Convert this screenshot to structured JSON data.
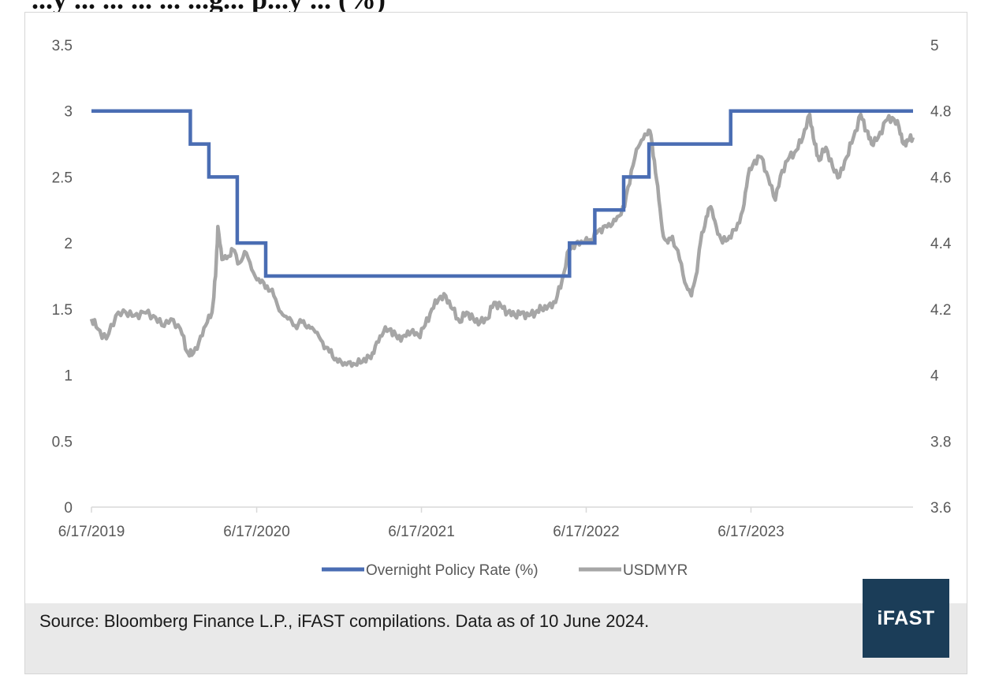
{
  "header": {
    "title_fragment": "...y ... ... ... ... ...g... p...y ... (%)"
  },
  "source_note": "Source: Bloomberg Finance L.P., iFAST compilations. Data as of 10 June 2024.",
  "logo_text": "iFAST",
  "colors": {
    "policy_rate": "#4a6db3",
    "usdmyr": "#a6a6a6",
    "logo_bg": "#1b3d58",
    "source_bg": "#e9e9e9"
  },
  "chart_data": {
    "type": "line",
    "x_axis": {
      "type": "date",
      "range": [
        "2019-06-17",
        "2024-06-10"
      ],
      "ticks": [
        "2019-06-17",
        "2020-06-17",
        "2021-06-17",
        "2022-06-17",
        "2023-06-17"
      ],
      "tick_labels": [
        "6/17/2019",
        "6/17/2020",
        "6/17/2021",
        "6/17/2022",
        "6/17/2023"
      ]
    },
    "y_left": {
      "range": [
        0,
        3.5
      ],
      "ticks": [
        0,
        0.5,
        1,
        1.5,
        2,
        2.5,
        3,
        3.5
      ],
      "tick_labels": [
        "0",
        "0.5",
        "1",
        "1.5",
        "2",
        "2.5",
        "3",
        "3.5"
      ]
    },
    "y_right": {
      "range": [
        3.6,
        5
      ],
      "ticks": [
        3.6,
        3.8,
        4,
        4.2,
        4.4,
        4.6,
        4.8,
        5
      ],
      "tick_labels": [
        "3.6",
        "3.8",
        "4",
        "4.2",
        "4.4",
        "4.6",
        "4.8",
        "5"
      ]
    },
    "grid": false,
    "legend_position": "bottom",
    "series": [
      {
        "name": "Overnight Policy Rate (%)",
        "axis": "left",
        "step": true,
        "points": [
          [
            "2019-06-17",
            3.0
          ],
          [
            "2020-01-22",
            2.75
          ],
          [
            "2020-03-03",
            2.5
          ],
          [
            "2020-05-05",
            2.0
          ],
          [
            "2020-07-07",
            1.75
          ],
          [
            "2022-05-11",
            2.0
          ],
          [
            "2022-07-06",
            2.25
          ],
          [
            "2022-09-08",
            2.5
          ],
          [
            "2022-11-03",
            2.75
          ],
          [
            "2023-05-03",
            3.0
          ],
          [
            "2024-06-10",
            3.0
          ]
        ]
      },
      {
        "name": "USDMYR",
        "axis": "right",
        "step": false,
        "points": [
          [
            "2019-06-17",
            4.17
          ],
          [
            "2019-07-01",
            4.14
          ],
          [
            "2019-07-20",
            4.11
          ],
          [
            "2019-08-10",
            4.18
          ],
          [
            "2019-09-01",
            4.19
          ],
          [
            "2019-09-20",
            4.18
          ],
          [
            "2019-10-10",
            4.19
          ],
          [
            "2019-11-01",
            4.18
          ],
          [
            "2019-11-20",
            4.15
          ],
          [
            "2019-12-10",
            4.17
          ],
          [
            "2019-12-31",
            4.14
          ],
          [
            "2020-01-15",
            4.07
          ],
          [
            "2020-01-25",
            4.06
          ],
          [
            "2020-02-10",
            4.1
          ],
          [
            "2020-02-25",
            4.15
          ],
          [
            "2020-03-10",
            4.19
          ],
          [
            "2020-03-18",
            4.3
          ],
          [
            "2020-03-23",
            4.45
          ],
          [
            "2020-04-01",
            4.35
          ],
          [
            "2020-04-15",
            4.36
          ],
          [
            "2020-04-25",
            4.38
          ],
          [
            "2020-05-10",
            4.34
          ],
          [
            "2020-05-25",
            4.37
          ],
          [
            "2020-06-10",
            4.31
          ],
          [
            "2020-06-25",
            4.28
          ],
          [
            "2020-07-10",
            4.27
          ],
          [
            "2020-07-25",
            4.24
          ],
          [
            "2020-08-10",
            4.19
          ],
          [
            "2020-08-25",
            4.17
          ],
          [
            "2020-09-10",
            4.15
          ],
          [
            "2020-09-25",
            4.16
          ],
          [
            "2020-10-10",
            4.15
          ],
          [
            "2020-10-25",
            4.13
          ],
          [
            "2020-11-10",
            4.1
          ],
          [
            "2020-11-25",
            4.07
          ],
          [
            "2020-12-10",
            4.05
          ],
          [
            "2020-12-25",
            4.03
          ],
          [
            "2021-01-10",
            4.04
          ],
          [
            "2021-01-25",
            4.03
          ],
          [
            "2021-02-10",
            4.05
          ],
          [
            "2021-02-25",
            4.05
          ],
          [
            "2021-03-10",
            4.1
          ],
          [
            "2021-03-25",
            4.13
          ],
          [
            "2021-04-10",
            4.14
          ],
          [
            "2021-04-25",
            4.11
          ],
          [
            "2021-05-10",
            4.12
          ],
          [
            "2021-05-25",
            4.13
          ],
          [
            "2021-06-10",
            4.12
          ],
          [
            "2021-06-25",
            4.15
          ],
          [
            "2021-07-10",
            4.2
          ],
          [
            "2021-07-25",
            4.23
          ],
          [
            "2021-08-10",
            4.24
          ],
          [
            "2021-08-25",
            4.2
          ],
          [
            "2021-09-10",
            4.16
          ],
          [
            "2021-09-25",
            4.19
          ],
          [
            "2021-10-10",
            4.17
          ],
          [
            "2021-10-25",
            4.16
          ],
          [
            "2021-11-10",
            4.17
          ],
          [
            "2021-11-25",
            4.22
          ],
          [
            "2021-12-10",
            4.21
          ],
          [
            "2021-12-25",
            4.19
          ],
          [
            "2022-01-10",
            4.18
          ],
          [
            "2022-01-25",
            4.19
          ],
          [
            "2022-02-10",
            4.18
          ],
          [
            "2022-02-25",
            4.19
          ],
          [
            "2022-03-10",
            4.2
          ],
          [
            "2022-03-25",
            4.21
          ],
          [
            "2022-04-10",
            4.22
          ],
          [
            "2022-04-25",
            4.29
          ],
          [
            "2022-05-10",
            4.38
          ],
          [
            "2022-05-25",
            4.4
          ],
          [
            "2022-06-10",
            4.4
          ],
          [
            "2022-06-25",
            4.41
          ],
          [
            "2022-07-10",
            4.43
          ],
          [
            "2022-07-25",
            4.45
          ],
          [
            "2022-08-10",
            4.45
          ],
          [
            "2022-08-25",
            4.48
          ],
          [
            "2022-09-10",
            4.51
          ],
          [
            "2022-09-25",
            4.62
          ],
          [
            "2022-10-10",
            4.69
          ],
          [
            "2022-10-25",
            4.73
          ],
          [
            "2022-11-05",
            4.74
          ],
          [
            "2022-11-15",
            4.65
          ],
          [
            "2022-11-25",
            4.53
          ],
          [
            "2022-12-05",
            4.42
          ],
          [
            "2022-12-15",
            4.4
          ],
          [
            "2022-12-25",
            4.42
          ],
          [
            "2023-01-10",
            4.35
          ],
          [
            "2023-01-25",
            4.27
          ],
          [
            "2023-02-05",
            4.24
          ],
          [
            "2023-02-15",
            4.3
          ],
          [
            "2023-02-25",
            4.4
          ],
          [
            "2023-03-10",
            4.48
          ],
          [
            "2023-03-20",
            4.51
          ],
          [
            "2023-04-01",
            4.45
          ],
          [
            "2023-04-15",
            4.4
          ],
          [
            "2023-04-30",
            4.42
          ],
          [
            "2023-05-15",
            4.44
          ],
          [
            "2023-05-30",
            4.5
          ],
          [
            "2023-06-10",
            4.6
          ],
          [
            "2023-06-25",
            4.65
          ],
          [
            "2023-07-10",
            4.66
          ],
          [
            "2023-07-25",
            4.6
          ],
          [
            "2023-08-10",
            4.53
          ],
          [
            "2023-08-25",
            4.62
          ],
          [
            "2023-09-10",
            4.66
          ],
          [
            "2023-09-25",
            4.68
          ],
          [
            "2023-10-10",
            4.72
          ],
          [
            "2023-10-25",
            4.79
          ],
          [
            "2023-11-05",
            4.7
          ],
          [
            "2023-11-15",
            4.65
          ],
          [
            "2023-11-30",
            4.69
          ],
          [
            "2023-12-15",
            4.63
          ],
          [
            "2023-12-30",
            4.6
          ],
          [
            "2024-01-15",
            4.66
          ],
          [
            "2024-01-30",
            4.72
          ],
          [
            "2024-02-15",
            4.79
          ],
          [
            "2024-02-28",
            4.74
          ],
          [
            "2024-03-10",
            4.7
          ],
          [
            "2024-03-25",
            4.72
          ],
          [
            "2024-04-10",
            4.77
          ],
          [
            "2024-04-25",
            4.78
          ],
          [
            "2024-05-10",
            4.75
          ],
          [
            "2024-05-20",
            4.7
          ],
          [
            "2024-05-30",
            4.71
          ],
          [
            "2024-06-10",
            4.72
          ]
        ]
      }
    ]
  }
}
